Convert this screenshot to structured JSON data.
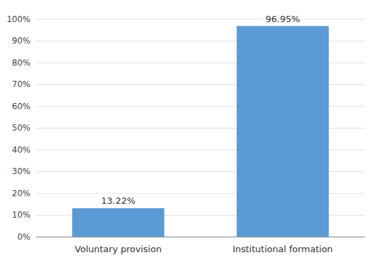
{
  "chart_data": {
    "type": "bar",
    "categories": [
      "Voluntary provision",
      "Institutional formation"
    ],
    "values": [
      13.22,
      96.95
    ],
    "value_labels": [
      "13.22%",
      "96.95%"
    ],
    "data_labels": true,
    "color": "#5B9BD5",
    "ylim": [
      0,
      100
    ],
    "yticks": [
      {
        "value": 0,
        "label": "0%"
      },
      {
        "value": 10,
        "label": "10%"
      },
      {
        "value": 20,
        "label": "20%"
      },
      {
        "value": 30,
        "label": "30%"
      },
      {
        "value": 40,
        "label": "40%"
      },
      {
        "value": 50,
        "label": "50%"
      },
      {
        "value": 60,
        "label": "60%"
      },
      {
        "value": 70,
        "label": "70%"
      },
      {
        "value": 80,
        "label": "80%"
      },
      {
        "value": 90,
        "label": "90%"
      },
      {
        "value": 100,
        "label": "100%"
      }
    ],
    "grid": true
  }
}
